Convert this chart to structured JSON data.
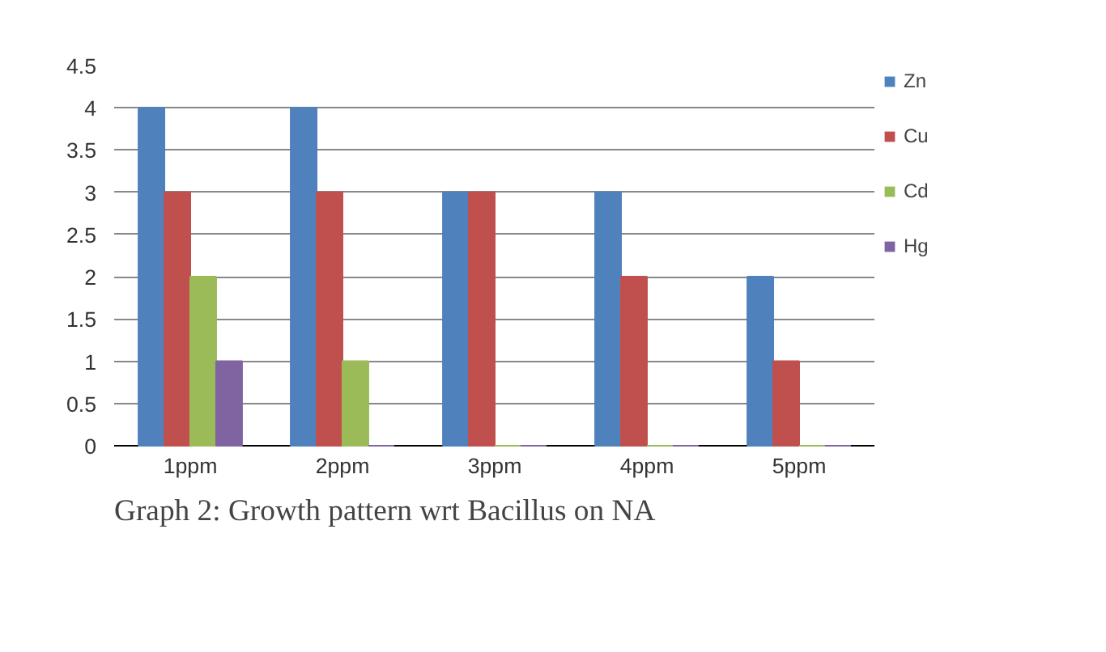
{
  "chart_data": {
    "type": "bar",
    "title": "Graph 2: Growth pattern wrt Bacillus on NA",
    "categories": [
      "1ppm",
      "2ppm",
      "3ppm",
      "4ppm",
      "5ppm"
    ],
    "series": [
      {
        "name": "Zn",
        "color": "#4f81bd",
        "values": [
          4,
          4,
          3,
          3,
          2
        ]
      },
      {
        "name": "Cu",
        "color": "#c0504d",
        "values": [
          3,
          3,
          3,
          2,
          1
        ]
      },
      {
        "name": "Cd",
        "color": "#9bbb59",
        "values": [
          2,
          1,
          0,
          0,
          0
        ]
      },
      {
        "name": "Hg",
        "color": "#8064a2",
        "values": [
          1,
          0,
          0,
          0,
          0
        ]
      }
    ],
    "ylim": [
      0,
      4.5
    ],
    "yticks": [
      0,
      0.5,
      1,
      1.5,
      2,
      2.5,
      3,
      3.5,
      4,
      4.5
    ],
    "grid": "y",
    "legend": "right"
  }
}
